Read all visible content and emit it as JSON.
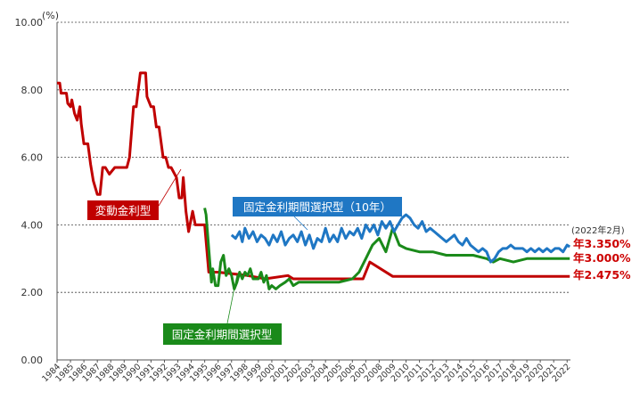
{
  "chart_data": {
    "type": "line",
    "ylabel": "(%)",
    "ylim": [
      0,
      10
    ],
    "yticks": [
      "0.00",
      "2.00",
      "4.00",
      "6.00",
      "8.00",
      "10.00"
    ],
    "xlim": [
      1984,
      2022.2
    ],
    "xticks": [
      "1984",
      "1985",
      "1986",
      "1987",
      "1988",
      "1989",
      "1990",
      "1991",
      "1992",
      "1993",
      "1994",
      "1995",
      "1996",
      "1997",
      "1998",
      "1999",
      "2000",
      "2001",
      "2002",
      "2003",
      "2004",
      "2005",
      "2006",
      "2007",
      "2008",
      "2009",
      "2010",
      "2011",
      "2012",
      "2013",
      "2014",
      "2015",
      "2016",
      "2017",
      "2018",
      "2019",
      "2020",
      "2021",
      "2022"
    ],
    "grid": "horizontal dashed",
    "as_of_label": "(2022年2月)",
    "colors": {
      "variable": "#c00000",
      "fixed_period": "#1a8a1a",
      "fixed_10y": "#1f77c4"
    },
    "series": [
      {
        "name": "変動金利型",
        "end_label": "年2.475%",
        "x": [
          1984.0,
          1984.2,
          1984.3,
          1984.7,
          1984.8,
          1985.0,
          1985.1,
          1985.3,
          1985.5,
          1985.7,
          1985.8,
          1986.0,
          1986.1,
          1986.3,
          1986.5,
          1986.7,
          1987.0,
          1987.2,
          1987.4,
          1987.6,
          1987.9,
          1988.3,
          1988.6,
          1989.2,
          1989.4,
          1989.7,
          1989.9,
          1990.2,
          1990.6,
          1990.7,
          1991.0,
          1991.2,
          1991.4,
          1991.6,
          1991.9,
          1992.1,
          1992.3,
          1992.5,
          1992.9,
          1993.1,
          1993.3,
          1993.4,
          1993.6,
          1993.8,
          1994.1,
          1994.3,
          1994.5,
          1995.0,
          1995.3,
          1995.5,
          1995.8,
          1996.0,
          1998.2,
          1999.5,
          2001.2,
          2001.6,
          2006.5,
          2006.8,
          2007.3,
          2009.0,
          2022.2
        ],
        "values": [
          8.2,
          8.2,
          7.9,
          7.9,
          7.6,
          7.5,
          7.7,
          7.3,
          7.1,
          7.5,
          7.0,
          6.4,
          6.4,
          6.4,
          5.8,
          5.3,
          4.9,
          4.9,
          5.7,
          5.7,
          5.5,
          5.7,
          5.7,
          5.7,
          6.0,
          7.5,
          7.5,
          8.5,
          8.5,
          7.8,
          7.5,
          7.5,
          6.9,
          6.9,
          6.0,
          6.0,
          5.7,
          5.7,
          5.4,
          4.8,
          4.8,
          5.4,
          4.4,
          3.8,
          4.4,
          4.0,
          4.0,
          4.0,
          2.6,
          2.6,
          2.6,
          2.6,
          2.5,
          2.4,
          2.5,
          2.4,
          2.4,
          2.4,
          2.9,
          2.475,
          2.475
        ]
      },
      {
        "name": "固定金利期間選択型",
        "end_label": "年3.000%",
        "x": [
          1995.0,
          1995.1,
          1995.3,
          1995.5,
          1995.6,
          1995.8,
          1996.0,
          1996.2,
          1996.4,
          1996.6,
          1996.8,
          1997.0,
          1997.2,
          1997.4,
          1997.6,
          1997.8,
          1998.0,
          1998.2,
          1998.4,
          1998.6,
          1998.8,
          1999.0,
          1999.2,
          1999.4,
          1999.6,
          1999.8,
          2000.0,
          2000.3,
          2000.6,
          2001.0,
          2001.3,
          2001.6,
          2002.0,
          2003.0,
          2004.0,
          2005.0,
          2006.0,
          2006.5,
          2007.0,
          2007.5,
          2008.0,
          2008.5,
          2009.0,
          2009.5,
          2010.0,
          2011.0,
          2012.0,
          2013.0,
          2014.0,
          2015.0,
          2016.0,
          2016.5,
          2017.0,
          2018.0,
          2019.0,
          2020.0,
          2021.0,
          2022.0,
          2022.2
        ],
        "values": [
          4.5,
          4.3,
          3.3,
          2.3,
          2.7,
          2.2,
          2.2,
          2.9,
          3.1,
          2.5,
          2.7,
          2.5,
          2.1,
          2.3,
          2.6,
          2.4,
          2.6,
          2.5,
          2.7,
          2.4,
          2.4,
          2.4,
          2.6,
          2.3,
          2.5,
          2.1,
          2.2,
          2.1,
          2.2,
          2.3,
          2.4,
          2.2,
          2.3,
          2.3,
          2.3,
          2.3,
          2.4,
          2.6,
          3.0,
          3.4,
          3.6,
          3.2,
          3.9,
          3.4,
          3.3,
          3.2,
          3.2,
          3.1,
          3.1,
          3.1,
          3.0,
          2.9,
          3.0,
          2.9,
          3.0,
          3.0,
          3.0,
          3.0,
          3.0
        ]
      },
      {
        "name": "固定金利期間選択型（10年）",
        "end_label": "年3.350%",
        "x": [
          1997.0,
          1997.3,
          1997.6,
          1997.8,
          1998.0,
          1998.3,
          1998.6,
          1998.9,
          1999.2,
          1999.5,
          1999.8,
          2000.1,
          2000.4,
          2000.7,
          2001.0,
          2001.3,
          2001.6,
          2001.9,
          2002.2,
          2002.5,
          2002.8,
          2003.1,
          2003.4,
          2003.7,
          2004.0,
          2004.3,
          2004.6,
          2004.9,
          2005.2,
          2005.5,
          2005.8,
          2006.1,
          2006.4,
          2006.7,
          2007.0,
          2007.3,
          2007.6,
          2007.9,
          2008.2,
          2008.5,
          2008.8,
          2009.1,
          2009.4,
          2009.7,
          2010.0,
          2010.3,
          2010.6,
          2010.9,
          2011.2,
          2011.5,
          2011.8,
          2012.1,
          2012.4,
          2012.7,
          2013.0,
          2013.3,
          2013.6,
          2013.9,
          2014.2,
          2014.5,
          2014.8,
          2015.1,
          2015.4,
          2015.7,
          2016.0,
          2016.3,
          2016.6,
          2016.9,
          2017.2,
          2017.5,
          2017.8,
          2018.1,
          2018.4,
          2018.7,
          2019.0,
          2019.3,
          2019.6,
          2019.9,
          2020.2,
          2020.5,
          2020.8,
          2021.1,
          2021.4,
          2021.7,
          2022.0,
          2022.2
        ],
        "values": [
          3.7,
          3.6,
          3.8,
          3.5,
          3.9,
          3.6,
          3.8,
          3.5,
          3.7,
          3.6,
          3.4,
          3.7,
          3.5,
          3.8,
          3.4,
          3.6,
          3.7,
          3.5,
          3.8,
          3.4,
          3.7,
          3.3,
          3.6,
          3.5,
          3.9,
          3.5,
          3.7,
          3.5,
          3.9,
          3.6,
          3.8,
          3.7,
          3.9,
          3.6,
          4.0,
          3.8,
          4.0,
          3.7,
          4.1,
          3.9,
          4.1,
          3.8,
          4.0,
          4.2,
          4.3,
          4.2,
          4.0,
          3.9,
          4.1,
          3.8,
          3.9,
          3.8,
          3.7,
          3.6,
          3.5,
          3.6,
          3.7,
          3.5,
          3.4,
          3.6,
          3.4,
          3.3,
          3.2,
          3.3,
          3.2,
          2.9,
          3.0,
          3.2,
          3.3,
          3.3,
          3.4,
          3.3,
          3.3,
          3.3,
          3.2,
          3.3,
          3.2,
          3.3,
          3.2,
          3.3,
          3.2,
          3.3,
          3.3,
          3.2,
          3.4,
          3.35
        ]
      }
    ]
  }
}
